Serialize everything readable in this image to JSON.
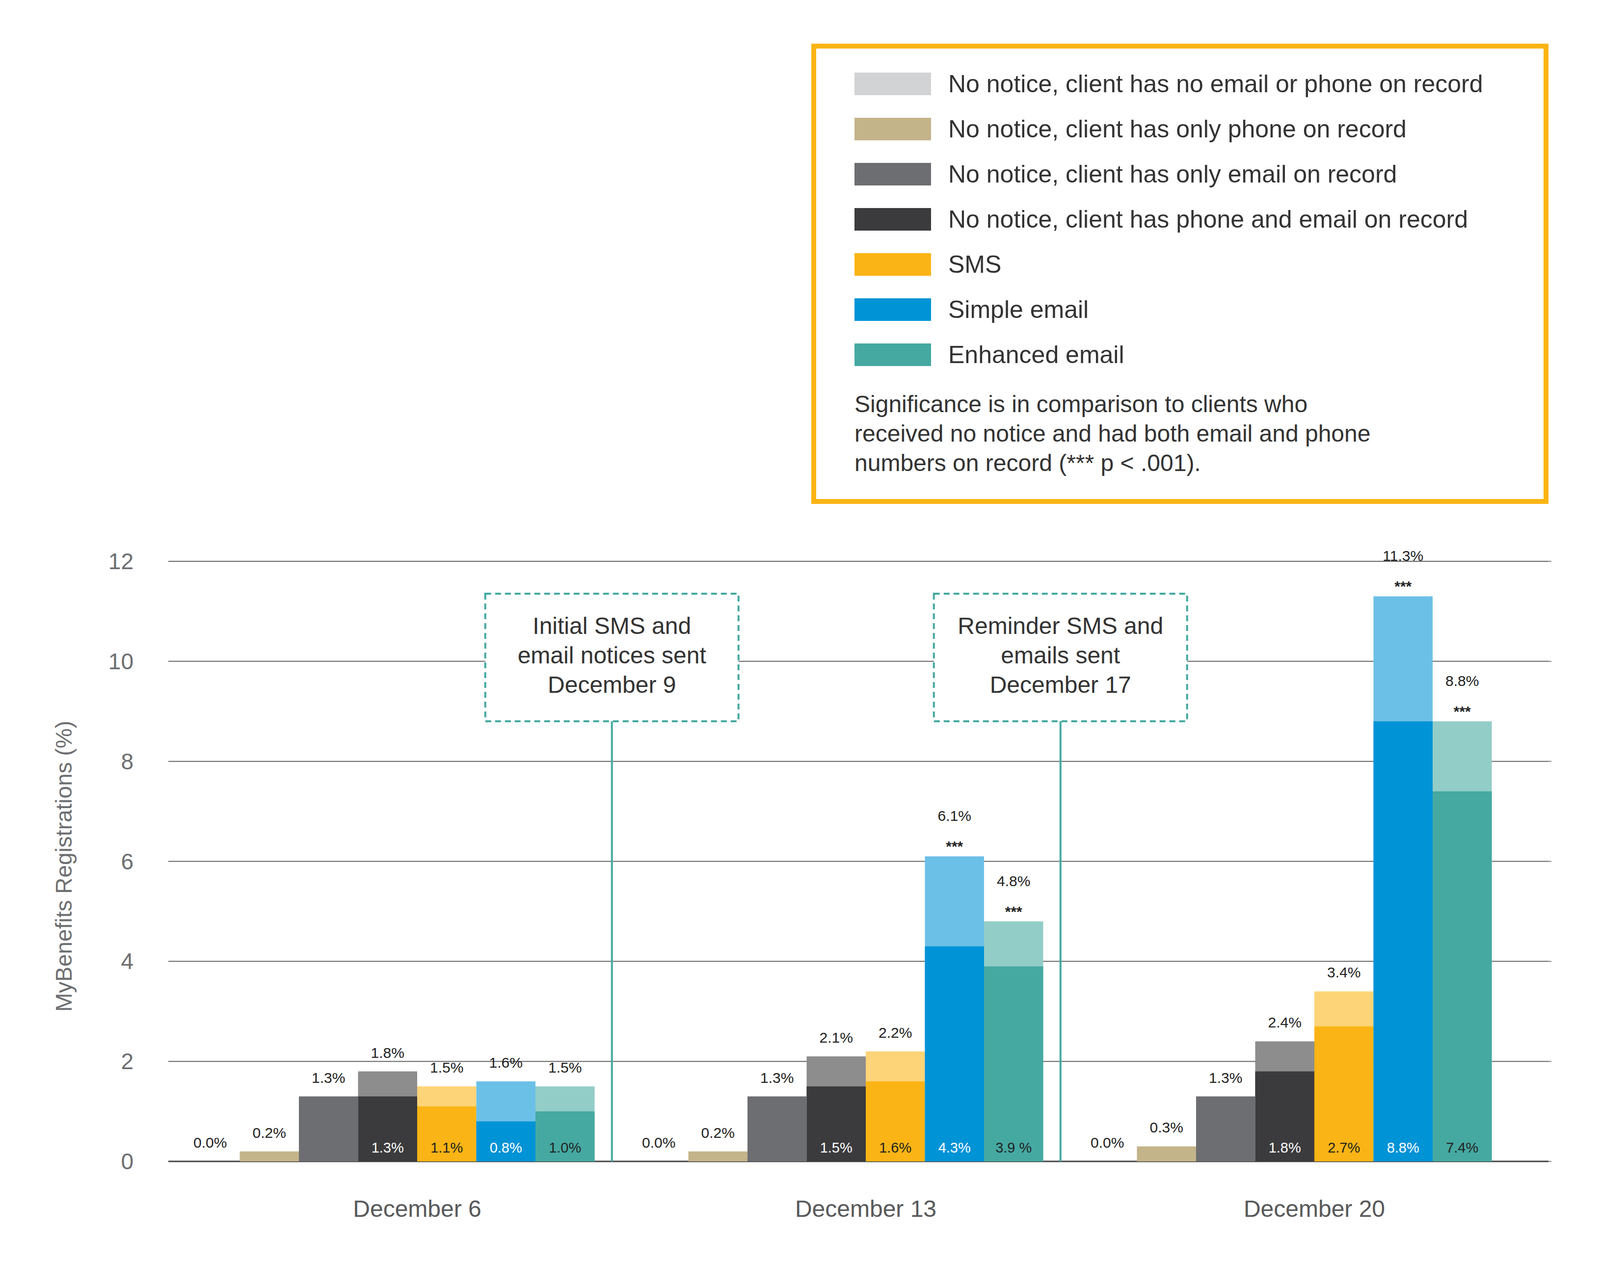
{
  "chart_data": {
    "type": "bar",
    "y_label": "MyBenefits Registrations (%)",
    "categories": [
      "December 6",
      "December 13",
      "December 20"
    ],
    "ylim": [
      0,
      12
    ],
    "yticks": [
      0,
      2,
      4,
      6,
      8,
      10,
      12
    ],
    "grid": true,
    "legend": "top-right",
    "data_labels": true,
    "note_lines": [
      "Significance is in comparison to clients who",
      "received no notice and had both email and phone",
      "numbers on record (*** p < .001)."
    ],
    "annotations": [
      {
        "lines": [
          "Initial SMS and",
          "email notices sent",
          "December 9"
        ]
      },
      {
        "lines": [
          "Reminder SMS and",
          "emails sent",
          "December 17"
        ]
      }
    ],
    "series": [
      {
        "name": "No notice, client has no email or phone on record",
        "color": "#d1d3d4",
        "values": [
          0,
          0,
          0
        ],
        "value_labels": [
          "0.0%",
          "0.0%",
          "0.0%"
        ]
      },
      {
        "name": "No notice, client has only phone on record",
        "color": "#c4b48a",
        "values": [
          0.2,
          0.2,
          0.3
        ],
        "value_labels": [
          "0.2%",
          "0.2%",
          "0.3%"
        ]
      },
      {
        "name": "No notice, client has only email on record",
        "color": "#6d6e71",
        "values": [
          1.3,
          1.3,
          1.3
        ],
        "value_labels": [
          "1.3%",
          "1.3%",
          "1.3%"
        ]
      },
      {
        "name": "No notice, client has phone and email on record",
        "color": "#3b3b3d",
        "values": [
          1.8,
          2.1,
          2.4
        ],
        "value_labels": [
          "1.8%",
          "2.1%",
          "2.4%"
        ],
        "base": [
          1.3,
          1.5,
          1.8
        ],
        "base_labels": [
          "1.3%",
          "1.5%",
          "1.8%"
        ]
      },
      {
        "name": "SMS",
        "color": "#fbb415",
        "values": [
          1.5,
          2.2,
          3.4
        ],
        "value_labels": [
          "1.5%",
          "2.2%",
          "3.4%"
        ],
        "base": [
          1.1,
          1.6,
          2.7
        ],
        "base_labels": [
          "1.1%",
          "1.6%",
          "2.7%"
        ]
      },
      {
        "name": "Simple email",
        "color": "#0093d6",
        "values": [
          1.6,
          6.1,
          11.3
        ],
        "value_labels": [
          "1.6%",
          "6.1%",
          "11.3%"
        ],
        "base": [
          0.8,
          4.3,
          8.8
        ],
        "base_labels": [
          "0.8%",
          "4.3%",
          "8.8%"
        ],
        "significance": [
          null,
          "***",
          "***"
        ]
      },
      {
        "name": "Enhanced email",
        "color": "#45a9a1",
        "values": [
          1.5,
          4.8,
          8.8
        ],
        "value_labels": [
          "1.5%",
          "4.8%",
          "8.8%"
        ],
        "base": [
          1.0,
          3.9,
          7.4
        ],
        "base_labels": [
          "1.0%",
          "3.9 %",
          "7.4%"
        ],
        "significance": [
          null,
          "***",
          "***"
        ]
      }
    ]
  }
}
